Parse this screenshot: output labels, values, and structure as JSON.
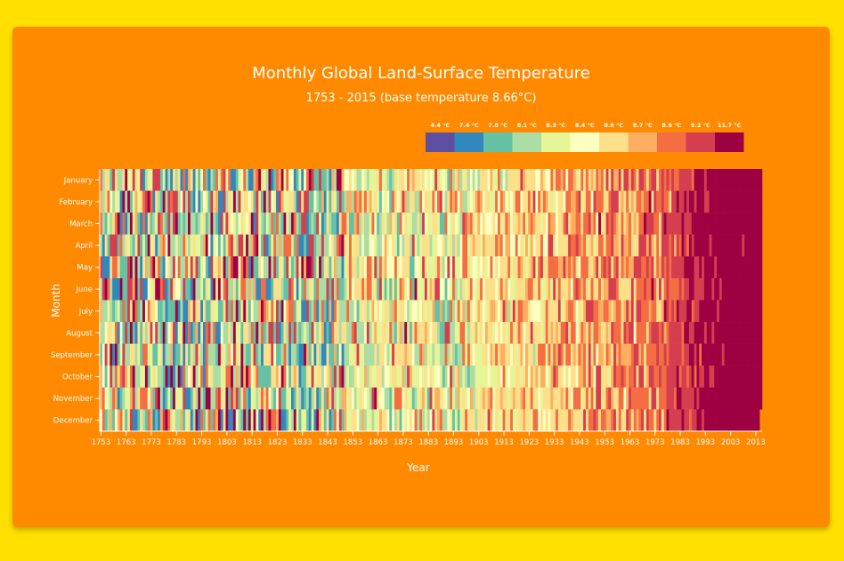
{
  "colors": {
    "background": "#FFE000",
    "card": "#FF8A00",
    "text": "#FFFFFF"
  },
  "chart_data": {
    "type": "heatmap",
    "title": "Monthly Global Land-Surface Temperature",
    "subtitle": "1753 - 2015 (base temperature 8.66°C)",
    "xlabel": "Year",
    "ylabel": "Month",
    "base_temperature": 8.66,
    "x_range": [
      1753,
      2015
    ],
    "months": [
      "January",
      "February",
      "March",
      "April",
      "May",
      "June",
      "July",
      "August",
      "September",
      "October",
      "November",
      "December"
    ],
    "x_ticks": [
      1753,
      1763,
      1773,
      1783,
      1793,
      1803,
      1813,
      1823,
      1833,
      1843,
      1853,
      1863,
      1873,
      1883,
      1893,
      1903,
      1913,
      1923,
      1933,
      1943,
      1953,
      1963,
      1973,
      1983,
      1993,
      2003,
      2013
    ],
    "legend": {
      "labels": [
        "4.4 °C",
        "7.4 °C",
        "7.8 °C",
        "8.1 °C",
        "8.3 °C",
        "8.4 °C",
        "8.6 °C",
        "8.7 °C",
        "8.9 °C",
        "9.2 °C",
        "11.7 °C"
      ],
      "thresholds": [
        4.4,
        7.4,
        7.8,
        8.1,
        8.3,
        8.4,
        8.6,
        8.7,
        8.9,
        9.2,
        11.7
      ],
      "colors": [
        "#5E4FA2",
        "#3288BD",
        "#66C2A5",
        "#ABDDA4",
        "#E6F598",
        "#FFFFBF",
        "#FEE08B",
        "#FDAE61",
        "#F46D43",
        "#D53E4F",
        "#9E0142"
      ]
    },
    "grid": false
  }
}
